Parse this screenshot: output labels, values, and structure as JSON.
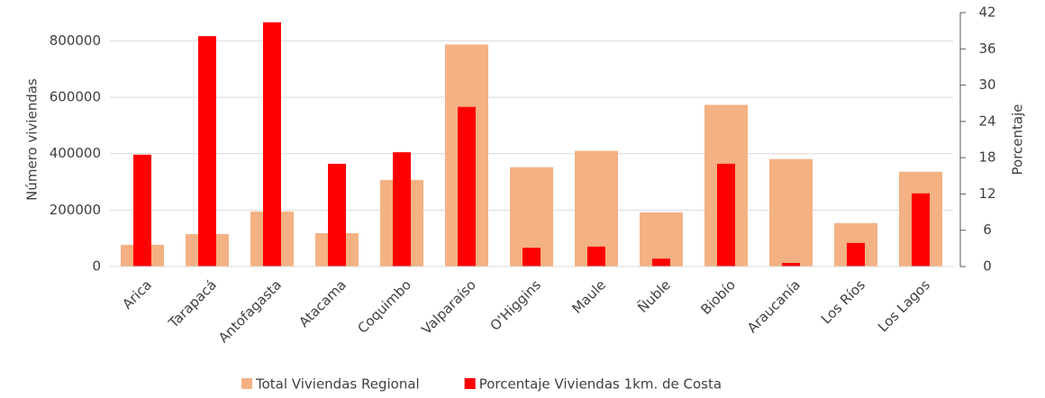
{
  "chart_data": {
    "type": "bar",
    "categories": [
      "Arica",
      "Tarapacá",
      "Antofagasta",
      "Atacama",
      "Coquimbo",
      "Valparaíso",
      "O'Higgins",
      "Maule",
      "Ñuble",
      "Biobío",
      "Araucanía",
      "Los Ríos",
      "Los Lagos"
    ],
    "series": [
      {
        "name": "Total Viviendas Regional",
        "color": "#f4b183",
        "values": [
          77000,
          115000,
          195000,
          118000,
          307000,
          787000,
          352000,
          410000,
          192000,
          573000,
          381000,
          154000,
          336000
        ]
      },
      {
        "name": "Porcentaje Viviendas 1km. de Costa",
        "color": "#ff0000",
        "axis": "y2",
        "values": [
          18.5,
          38.1,
          40.4,
          17.0,
          18.9,
          26.4,
          3.1,
          3.3,
          1.3,
          17.0,
          0.6,
          3.9,
          12.1
        ]
      }
    ],
    "ylabel": "Número viviendas",
    "y2label": "Porcentaje",
    "ylim": [
      0,
      900000
    ],
    "yticks": [
      0,
      200000,
      400000,
      600000,
      800000
    ],
    "y2lim": [
      0,
      42
    ],
    "y2ticks": [
      0,
      6,
      12,
      18,
      24,
      30,
      36,
      42
    ],
    "grid": true,
    "legend": "bottom"
  }
}
